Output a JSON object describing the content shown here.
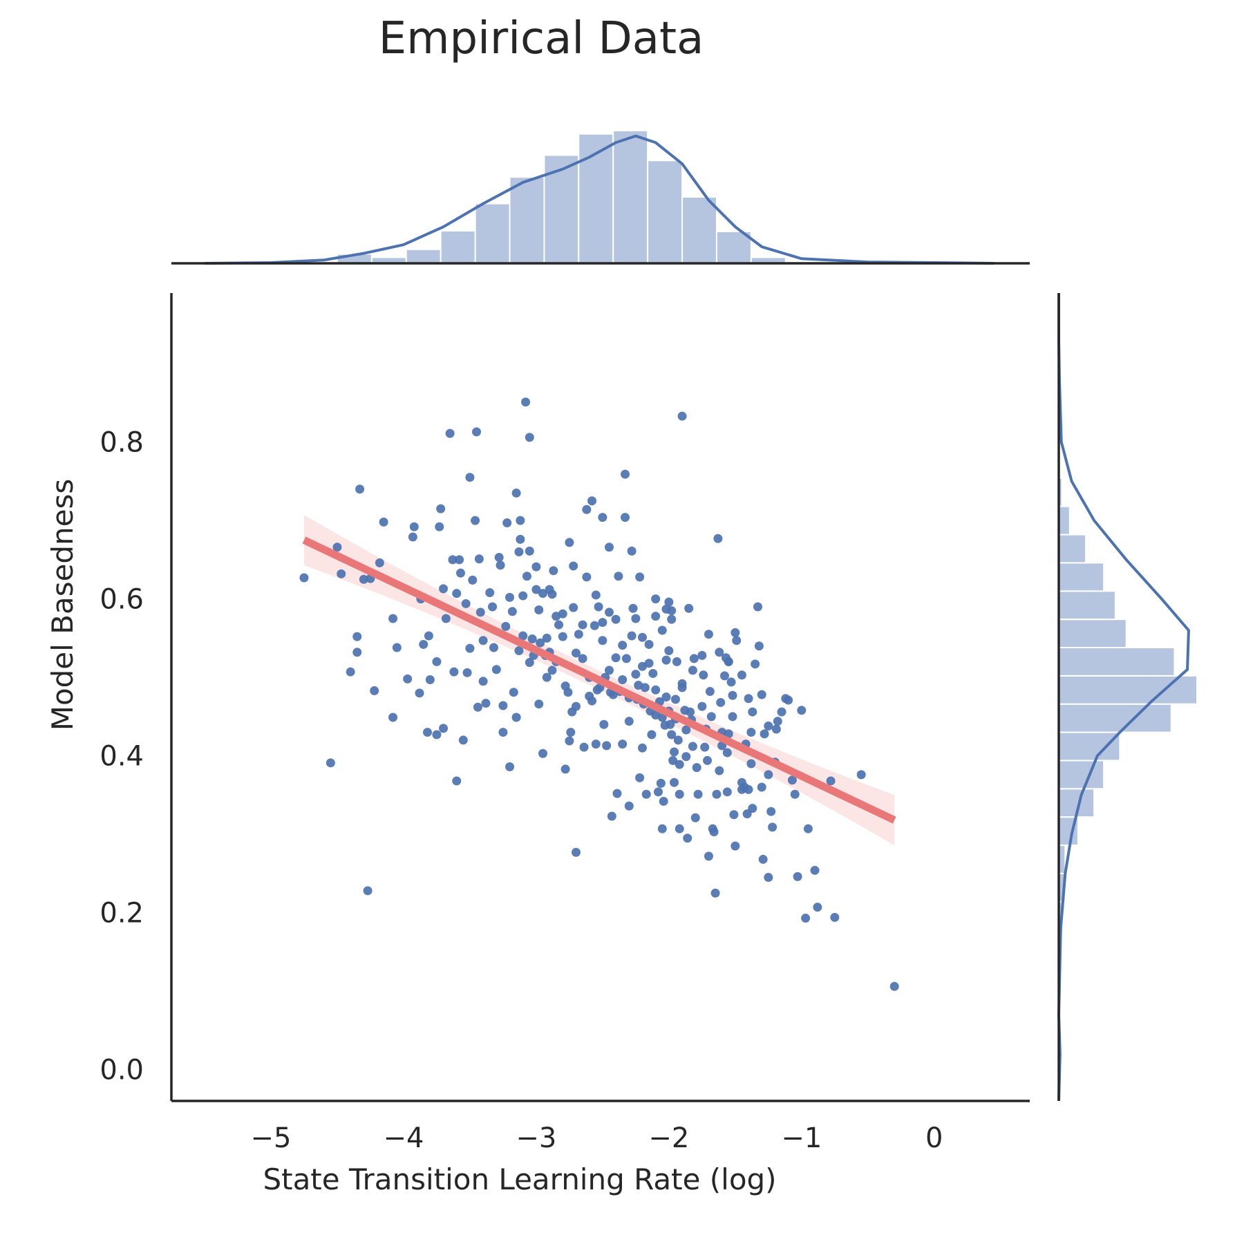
{
  "chart_data": {
    "type": "scatter",
    "title": "Empirical Data",
    "xlabel": "State Transition Learning Rate (log)",
    "ylabel": "Model Basedness",
    "xlim": [
      -5.75,
      0.72
    ],
    "ylim": [
      -0.04,
      0.99
    ],
    "x_ticks": [
      -5,
      -4,
      -3,
      -2,
      -1,
      0
    ],
    "x_tick_labels": [
      "−5",
      "−4",
      "−3",
      "−2",
      "−1",
      "0"
    ],
    "y_ticks": [
      0.0,
      0.2,
      0.4,
      0.6,
      0.8
    ],
    "y_tick_labels": [
      "0.0",
      "0.2",
      "0.4",
      "0.6",
      "0.8"
    ],
    "grid": false,
    "colors": {
      "points": "#4c72b0",
      "regression_line": "#e97777",
      "confidence_band": "#fbe5e5",
      "histogram": "#b5c5e0",
      "kde": "#4c72b0",
      "axes": "#262626"
    },
    "regression": {
      "x": [
        -4.75,
        -0.3
      ],
      "y": [
        0.675,
        0.318
      ],
      "ci_halfwidth_ends": 0.032,
      "ci_halfwidth_center": 0.012
    },
    "top_histogram": {
      "bin_edges": [
        -4.5,
        -4.24,
        -3.98,
        -3.72,
        -3.46,
        -3.2,
        -2.94,
        -2.68,
        -2.42,
        -2.16,
        -1.9,
        -1.64,
        -1.38,
        -1.12,
        -0.86
      ],
      "counts": [
        0.14,
        0.09,
        0.21,
        0.49,
        0.9,
        1.3,
        1.63,
        1.95,
        2.0,
        1.55,
        1.0,
        0.48,
        0.09,
        0.02
      ],
      "kde_x": [
        -5.5,
        -5.0,
        -4.6,
        -4.3,
        -4.0,
        -3.7,
        -3.4,
        -3.1,
        -2.8,
        -2.6,
        -2.4,
        -2.25,
        -2.1,
        -1.9,
        -1.7,
        -1.5,
        -1.3,
        -1.0,
        -0.5,
        0.0,
        0.45
      ],
      "kde_y": [
        0.0,
        0.01,
        0.05,
        0.15,
        0.28,
        0.55,
        0.9,
        1.22,
        1.42,
        1.6,
        1.82,
        1.92,
        1.82,
        1.5,
        0.95,
        0.55,
        0.25,
        0.07,
        0.02,
        0.01,
        0.0
      ]
    },
    "right_histogram": {
      "bin_edges": [
        0.07,
        0.106,
        0.142,
        0.178,
        0.214,
        0.25,
        0.286,
        0.322,
        0.358,
        0.394,
        0.43,
        0.466,
        0.502,
        0.538,
        0.574,
        0.61,
        0.646,
        0.682,
        0.718,
        0.754
      ],
      "counts": [
        0.02,
        0.0,
        0.0,
        0.05,
        0.1,
        0.1,
        0.3,
        0.55,
        0.7,
        0.95,
        1.75,
        2.15,
        1.8,
        1.05,
        0.88,
        0.7,
        0.42,
        0.17,
        0.05
      ],
      "kde_y": [
        0.07,
        0.18,
        0.25,
        0.3,
        0.35,
        0.4,
        0.43,
        0.47,
        0.51,
        0.56,
        0.6,
        0.65,
        0.7,
        0.75,
        0.8,
        0.88,
        0.93
      ],
      "kde_x": [
        0.0,
        0.03,
        0.1,
        0.2,
        0.35,
        0.6,
        0.95,
        1.45,
        2.0,
        2.02,
        1.6,
        1.05,
        0.55,
        0.2,
        0.04,
        0.01,
        0.0
      ]
    },
    "points": [
      [
        -4.75,
        0.627
      ],
      [
        -4.5,
        0.666
      ],
      [
        -4.47,
        0.632
      ],
      [
        -4.55,
        0.391
      ],
      [
        -4.4,
        0.507
      ],
      [
        -4.35,
        0.552
      ],
      [
        -4.35,
        0.532
      ],
      [
        -4.33,
        0.74
      ],
      [
        -4.3,
        0.625
      ],
      [
        -4.27,
        0.228
      ],
      [
        -4.25,
        0.626
      ],
      [
        -4.22,
        0.483
      ],
      [
        -4.18,
        0.646
      ],
      [
        -4.15,
        0.698
      ],
      [
        -4.08,
        0.575
      ],
      [
        -4.08,
        0.449
      ],
      [
        -4.05,
        0.538
      ],
      [
        -3.97,
        0.498
      ],
      [
        -3.92,
        0.692
      ],
      [
        -3.93,
        0.679
      ],
      [
        -3.88,
        0.48
      ],
      [
        -3.87,
        0.6
      ],
      [
        -3.85,
        0.542
      ],
      [
        -3.82,
        0.43
      ],
      [
        -3.81,
        0.553
      ],
      [
        -3.8,
        0.497
      ],
      [
        -3.75,
        0.427
      ],
      [
        -3.75,
        0.52
      ],
      [
        -3.73,
        0.692
      ],
      [
        -3.72,
        0.715
      ],
      [
        -3.7,
        0.613
      ],
      [
        -3.7,
        0.435
      ],
      [
        -3.68,
        0.575
      ],
      [
        -3.65,
        0.811
      ],
      [
        -3.63,
        0.65
      ],
      [
        -3.62,
        0.507
      ],
      [
        -3.6,
        0.607
      ],
      [
        -3.6,
        0.368
      ],
      [
        -3.58,
        0.65
      ],
      [
        -3.57,
        0.633
      ],
      [
        -3.55,
        0.42
      ],
      [
        -3.53,
        0.594
      ],
      [
        -3.52,
        0.506
      ],
      [
        -3.5,
        0.537
      ],
      [
        -3.5,
        0.755
      ],
      [
        -3.48,
        0.624
      ],
      [
        -3.46,
        0.7
      ],
      [
        -3.45,
        0.813
      ],
      [
        -3.44,
        0.462
      ],
      [
        -3.43,
        0.651
      ],
      [
        -3.42,
        0.583
      ],
      [
        -3.4,
        0.547
      ],
      [
        -3.4,
        0.495
      ],
      [
        -3.38,
        0.467
      ],
      [
        -3.35,
        0.608
      ],
      [
        -3.33,
        0.59
      ],
      [
        -3.32,
        0.538
      ],
      [
        -3.3,
        0.51
      ],
      [
        -3.28,
        0.653
      ],
      [
        -3.27,
        0.643
      ],
      [
        -3.25,
        0.464
      ],
      [
        -3.25,
        0.43
      ],
      [
        -3.23,
        0.565
      ],
      [
        -3.22,
        0.697
      ],
      [
        -3.2,
        0.602
      ],
      [
        -3.2,
        0.386
      ],
      [
        -3.18,
        0.584
      ],
      [
        -3.17,
        0.481
      ],
      [
        -3.15,
        0.735
      ],
      [
        -3.15,
        0.449
      ],
      [
        -3.13,
        0.66
      ],
      [
        -3.13,
        0.534
      ],
      [
        -3.12,
        0.7
      ],
      [
        -3.12,
        0.676
      ],
      [
        -3.1,
        0.604
      ],
      [
        -3.1,
        0.553
      ],
      [
        -3.08,
        0.851
      ],
      [
        -3.07,
        0.629
      ],
      [
        -3.05,
        0.806
      ],
      [
        -3.05,
        0.519
      ],
      [
        -3.05,
        0.661
      ],
      [
        -3.03,
        0.549
      ],
      [
        -3.02,
        0.528
      ],
      [
        -3.0,
        0.612
      ],
      [
        -3.0,
        0.641
      ],
      [
        -2.98,
        0.466
      ],
      [
        -2.98,
        0.586
      ],
      [
        -2.97,
        0.544
      ],
      [
        -2.95,
        0.607
      ],
      [
        -2.95,
        0.403
      ],
      [
        -2.93,
        0.528
      ],
      [
        -2.92,
        0.5
      ],
      [
        -2.92,
        0.55
      ],
      [
        -2.9,
        0.532
      ],
      [
        -2.9,
        0.612
      ],
      [
        -2.88,
        0.509
      ],
      [
        -2.88,
        0.606
      ],
      [
        -2.87,
        0.636
      ],
      [
        -2.85,
        0.578
      ],
      [
        -2.85,
        0.52
      ],
      [
        -2.83,
        0.567
      ],
      [
        -2.8,
        0.581
      ],
      [
        -2.8,
        0.552
      ],
      [
        -2.78,
        0.383
      ],
      [
        -2.78,
        0.489
      ],
      [
        -2.76,
        0.481
      ],
      [
        -2.75,
        0.672
      ],
      [
        -2.75,
        0.419
      ],
      [
        -2.74,
        0.43
      ],
      [
        -2.73,
        0.456
      ],
      [
        -2.72,
        0.642
      ],
      [
        -2.72,
        0.589
      ],
      [
        -2.7,
        0.277
      ],
      [
        -2.7,
        0.531
      ],
      [
        -2.7,
        0.463
      ],
      [
        -2.68,
        0.555
      ],
      [
        -2.65,
        0.567
      ],
      [
        -2.65,
        0.524
      ],
      [
        -2.64,
        0.411
      ],
      [
        -2.62,
        0.714
      ],
      [
        -2.62,
        0.628
      ],
      [
        -2.6,
        0.5
      ],
      [
        -2.6,
        0.476
      ],
      [
        -2.58,
        0.725
      ],
      [
        -2.58,
        0.47
      ],
      [
        -2.56,
        0.566
      ],
      [
        -2.55,
        0.605
      ],
      [
        -2.55,
        0.415
      ],
      [
        -2.54,
        0.484
      ],
      [
        -2.53,
        0.59
      ],
      [
        -2.52,
        0.487
      ],
      [
        -2.5,
        0.704
      ],
      [
        -2.5,
        0.57
      ],
      [
        -2.5,
        0.547
      ],
      [
        -2.49,
        0.44
      ],
      [
        -2.48,
        0.5
      ],
      [
        -2.47,
        0.413
      ],
      [
        -2.45,
        0.666
      ],
      [
        -2.45,
        0.583
      ],
      [
        -2.45,
        0.509
      ],
      [
        -2.44,
        0.481
      ],
      [
        -2.43,
        0.323
      ],
      [
        -2.42,
        0.478
      ],
      [
        -2.4,
        0.574
      ],
      [
        -2.4,
        0.525
      ],
      [
        -2.39,
        0.352
      ],
      [
        -2.38,
        0.629
      ],
      [
        -2.37,
        0.482
      ],
      [
        -2.35,
        0.541
      ],
      [
        -2.35,
        0.497
      ],
      [
        -2.35,
        0.415
      ],
      [
        -2.33,
        0.704
      ],
      [
        -2.33,
        0.759
      ],
      [
        -2.32,
        0.524
      ],
      [
        -2.3,
        0.474
      ],
      [
        -2.3,
        0.444
      ],
      [
        -2.3,
        0.336
      ],
      [
        -2.28,
        0.661
      ],
      [
        -2.28,
        0.553
      ],
      [
        -2.27,
        0.588
      ],
      [
        -2.25,
        0.575
      ],
      [
        -2.25,
        0.504
      ],
      [
        -2.24,
        0.472
      ],
      [
        -2.23,
        0.49
      ],
      [
        -2.22,
        0.372
      ],
      [
        -2.22,
        0.628
      ],
      [
        -2.2,
        0.551
      ],
      [
        -2.2,
        0.514
      ],
      [
        -2.2,
        0.41
      ],
      [
        -2.19,
        0.466
      ],
      [
        -2.18,
        0.487
      ],
      [
        -2.17,
        0.351
      ],
      [
        -2.15,
        0.542
      ],
      [
        -2.15,
        0.518
      ],
      [
        -2.14,
        0.457
      ],
      [
        -2.13,
        0.427
      ],
      [
        -2.12,
        0.505
      ],
      [
        -2.1,
        0.6
      ],
      [
        -2.1,
        0.578
      ],
      [
        -2.1,
        0.484
      ],
      [
        -2.1,
        0.452
      ],
      [
        -2.08,
        0.354
      ],
      [
        -2.07,
        0.469
      ],
      [
        -2.06,
        0.365
      ],
      [
        -2.05,
        0.56
      ],
      [
        -2.05,
        0.449
      ],
      [
        -2.05,
        0.307
      ],
      [
        -2.04,
        0.342
      ],
      [
        -2.03,
        0.439
      ],
      [
        -2.02,
        0.587
      ],
      [
        -2.02,
        0.522
      ],
      [
        -2.02,
        0.475
      ],
      [
        -2.0,
        0.596
      ],
      [
        -2.0,
        0.534
      ],
      [
        -2.0,
        0.457
      ],
      [
        -1.99,
        0.44
      ],
      [
        -1.98,
        0.585
      ],
      [
        -1.98,
        0.574
      ],
      [
        -1.98,
        0.427
      ],
      [
        -1.97,
        0.394
      ],
      [
        -1.96,
        0.405
      ],
      [
        -1.96,
        0.366
      ],
      [
        -1.95,
        0.472
      ],
      [
        -1.95,
        0.447
      ],
      [
        -1.94,
        0.52
      ],
      [
        -1.93,
        0.42
      ],
      [
        -1.92,
        0.389
      ],
      [
        -1.92,
        0.351
      ],
      [
        -1.92,
        0.307
      ],
      [
        -1.9,
        0.833
      ],
      [
        -1.9,
        0.492
      ],
      [
        -1.9,
        0.487
      ],
      [
        -1.88,
        0.458
      ],
      [
        -1.87,
        0.433
      ],
      [
        -1.87,
        0.399
      ],
      [
        -1.86,
        0.295
      ],
      [
        -1.85,
        0.588
      ],
      [
        -1.84,
        0.456
      ],
      [
        -1.83,
        0.446
      ],
      [
        -1.82,
        0.509
      ],
      [
        -1.82,
        0.412
      ],
      [
        -1.81,
        0.524
      ],
      [
        -1.8,
        0.321
      ],
      [
        -1.79,
        0.385
      ],
      [
        -1.78,
        0.351
      ],
      [
        -1.75,
        0.528
      ],
      [
        -1.75,
        0.463
      ],
      [
        -1.74,
        0.503
      ],
      [
        -1.73,
        0.411
      ],
      [
        -1.72,
        0.434
      ],
      [
        -1.71,
        0.394
      ],
      [
        -1.7,
        0.555
      ],
      [
        -1.7,
        0.272
      ],
      [
        -1.69,
        0.482
      ],
      [
        -1.68,
        0.45
      ],
      [
        -1.67,
        0.307
      ],
      [
        -1.66,
        0.303
      ],
      [
        -1.65,
        0.225
      ],
      [
        -1.64,
        0.351
      ],
      [
        -1.63,
        0.677
      ],
      [
        -1.62,
        0.532
      ],
      [
        -1.62,
        0.381
      ],
      [
        -1.61,
        0.468
      ],
      [
        -1.6,
        0.413
      ],
      [
        -1.6,
        0.43
      ],
      [
        -1.58,
        0.502
      ],
      [
        -1.57,
        0.525
      ],
      [
        -1.56,
        0.354
      ],
      [
        -1.56,
        0.404
      ],
      [
        -1.55,
        0.428
      ],
      [
        -1.55,
        0.52
      ],
      [
        -1.55,
        0.52
      ],
      [
        -1.53,
        0.494
      ],
      [
        -1.52,
        0.477
      ],
      [
        -1.52,
        0.45
      ],
      [
        -1.51,
        0.325
      ],
      [
        -1.5,
        0.557
      ],
      [
        -1.5,
        0.285
      ],
      [
        -1.49,
        0.547
      ],
      [
        -1.45,
        0.503
      ],
      [
        -1.45,
        0.366
      ],
      [
        -1.45,
        0.357
      ],
      [
        -1.43,
        0.36
      ],
      [
        -1.42,
        0.415
      ],
      [
        -1.41,
        0.326
      ],
      [
        -1.4,
        0.473
      ],
      [
        -1.4,
        0.357
      ],
      [
        -1.38,
        0.39
      ],
      [
        -1.38,
        0.43
      ],
      [
        -1.37,
        0.456
      ],
      [
        -1.37,
        0.333
      ],
      [
        -1.35,
        0.517
      ],
      [
        -1.33,
        0.59
      ],
      [
        -1.32,
        0.54
      ],
      [
        -1.3,
        0.478
      ],
      [
        -1.3,
        0.36
      ],
      [
        -1.29,
        0.268
      ],
      [
        -1.28,
        0.428
      ],
      [
        -1.25,
        0.438
      ],
      [
        -1.25,
        0.376
      ],
      [
        -1.25,
        0.245
      ],
      [
        -1.23,
        0.329
      ],
      [
        -1.22,
        0.309
      ],
      [
        -1.2,
        0.392
      ],
      [
        -1.19,
        0.434
      ],
      [
        -1.18,
        0.444
      ],
      [
        -1.15,
        0.456
      ],
      [
        -1.12,
        0.473
      ],
      [
        -1.1,
        0.471
      ],
      [
        -1.07,
        0.369
      ],
      [
        -1.05,
        0.351
      ],
      [
        -1.03,
        0.246
      ],
      [
        -1.0,
        0.458
      ],
      [
        -0.97,
        0.193
      ],
      [
        -0.95,
        0.307
      ],
      [
        -0.9,
        0.254
      ],
      [
        -0.88,
        0.207
      ],
      [
        -0.78,
        0.368
      ],
      [
        -0.75,
        0.194
      ],
      [
        -0.55,
        0.376
      ],
      [
        -0.3,
        0.106
      ]
    ]
  }
}
